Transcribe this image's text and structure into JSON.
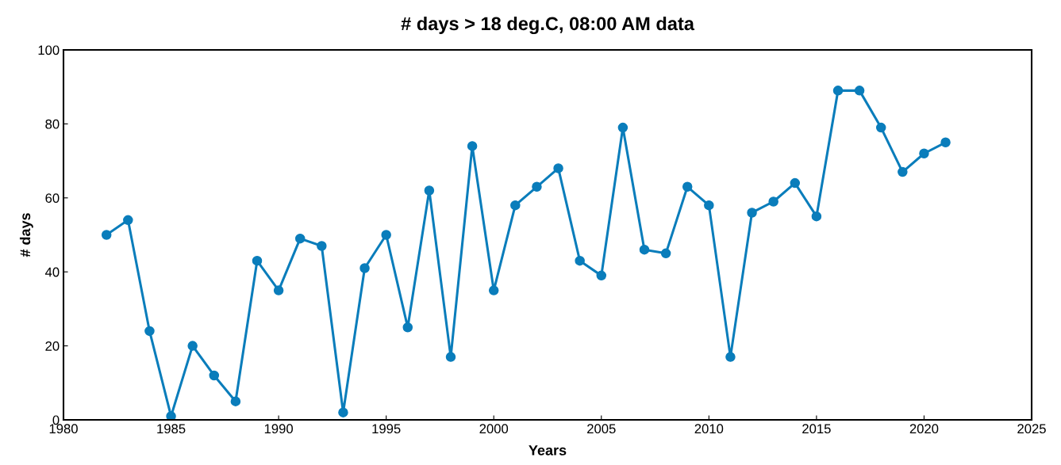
{
  "chart_data": {
    "type": "line",
    "title": "# days > 18 deg.C, 08:00 AM data",
    "xlabel": "Years",
    "ylabel": "# days",
    "x": [
      1982,
      1983,
      1984,
      1985,
      1986,
      1987,
      1988,
      1989,
      1990,
      1991,
      1992,
      1993,
      1994,
      1995,
      1996,
      1997,
      1998,
      1999,
      2000,
      2001,
      2002,
      2003,
      2004,
      2005,
      2006,
      2007,
      2008,
      2009,
      2010,
      2011,
      2012,
      2013,
      2014,
      2015,
      2016,
      2017,
      2018,
      2019,
      2020,
      2021
    ],
    "series": [
      {
        "color": "#0a7dbb",
        "values": [
          50,
          54,
          24,
          1,
          20,
          12,
          5,
          43,
          35,
          49,
          47,
          2,
          41,
          50,
          25,
          62,
          17,
          74,
          35,
          58,
          63,
          68,
          43,
          39,
          79,
          46,
          45,
          63,
          58,
          17,
          56,
          59,
          64,
          55,
          89,
          89,
          79,
          67,
          72,
          75
        ]
      }
    ],
    "xlim": [
      1980,
      2025
    ],
    "xticks": [
      1980,
      1985,
      1990,
      1995,
      2000,
      2005,
      2010,
      2015,
      2020,
      2025
    ],
    "ylim": [
      0,
      100
    ],
    "yticks": [
      0,
      20,
      40,
      60,
      80,
      100
    ],
    "grid": false,
    "legend": false,
    "marker": "circle",
    "line_style": "solid"
  }
}
